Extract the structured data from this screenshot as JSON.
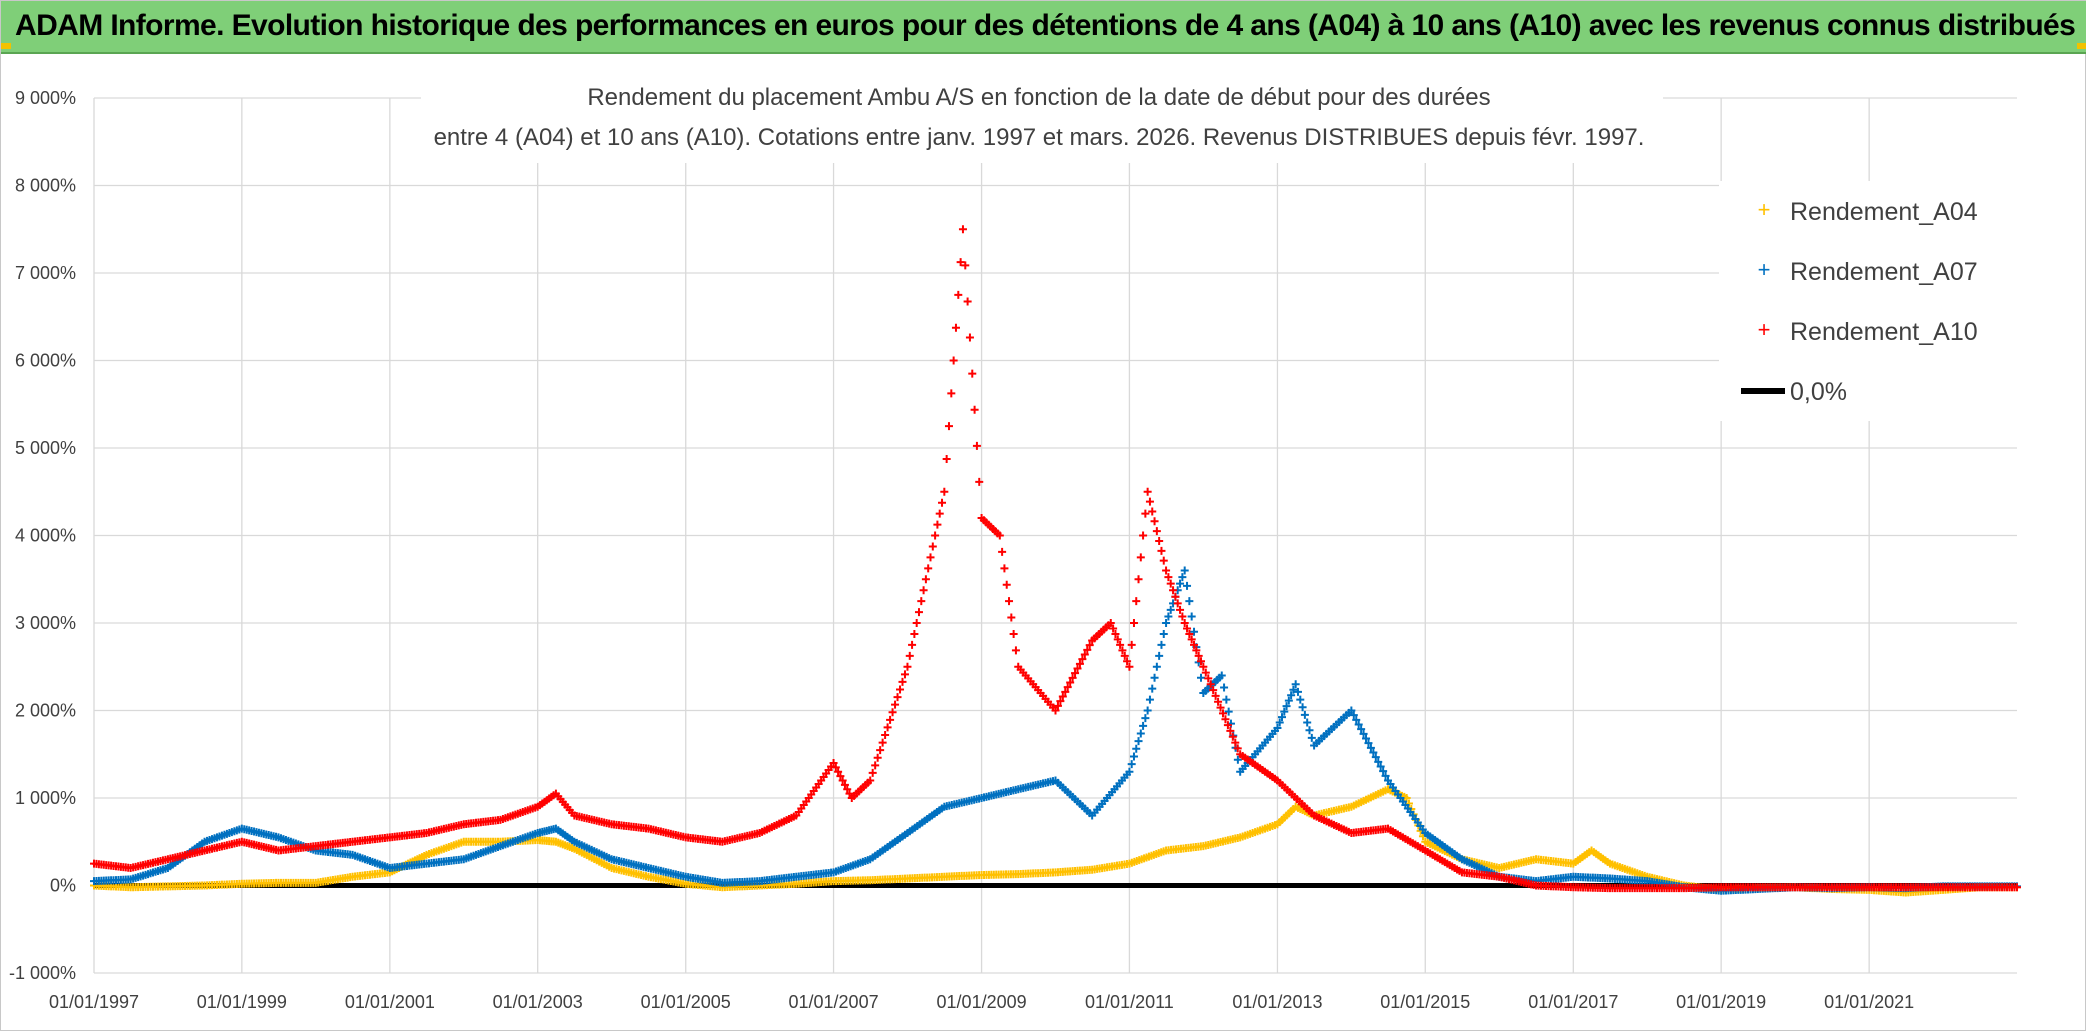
{
  "banner": {
    "title": "ADAM Informe. Evolution historique des performances en euros pour des détentions de 4 ans (A04) à 10 ans (A10) avec les revenus connus distribués"
  },
  "chart_data": {
    "type": "scatter",
    "title_line1": "Rendement du placement Ambu A/S en fonction de la date de début pour des durées",
    "title_line2": "entre 4 (A04) et 10 ans (A10). Cotations entre janv. 1997 et mars. 2026. Revenus DISTRIBUES depuis févr. 1997.",
    "y_ticks": [
      "-1 000%",
      "0%",
      "1 000%",
      "2 000%",
      "3 000%",
      "4 000%",
      "5 000%",
      "6 000%",
      "7 000%",
      "8 000%",
      "9 000%"
    ],
    "x_ticks": [
      "01/01/1997",
      "01/01/1999",
      "01/01/2001",
      "01/01/2003",
      "01/01/2005",
      "01/01/2007",
      "01/01/2009",
      "01/01/2011",
      "01/01/2013",
      "01/01/2015",
      "01/01/2017",
      "01/01/2019",
      "01/01/2021"
    ],
    "x_range": [
      "1997-01-01",
      "2023-01-01"
    ],
    "ylim": [
      -1000,
      9000
    ],
    "grid": true,
    "legend_position": "top-right",
    "series": [
      {
        "name": "Rendement_A04",
        "color": "#ffc000",
        "marker": "plus",
        "points": [
          [
            "1997-01-01",
            0
          ],
          [
            "1997-07-01",
            -20
          ],
          [
            "1998-01-01",
            -10
          ],
          [
            "1998-07-01",
            0
          ],
          [
            "1999-01-01",
            20
          ],
          [
            "1999-07-01",
            30
          ],
          [
            "2000-01-01",
            30
          ],
          [
            "2000-07-01",
            100
          ],
          [
            "2001-01-01",
            150
          ],
          [
            "2001-04-01",
            250
          ],
          [
            "2001-07-01",
            350
          ],
          [
            "2002-01-01",
            500
          ],
          [
            "2002-07-01",
            500
          ],
          [
            "2003-01-01",
            520
          ],
          [
            "2003-04-01",
            500
          ],
          [
            "2003-07-01",
            420
          ],
          [
            "2004-01-01",
            200
          ],
          [
            "2004-07-01",
            100
          ],
          [
            "2005-01-01",
            20
          ],
          [
            "2005-07-01",
            -20
          ],
          [
            "2006-01-01",
            0
          ],
          [
            "2006-07-01",
            20
          ],
          [
            "2007-01-01",
            50
          ],
          [
            "2007-07-01",
            60
          ],
          [
            "2008-01-01",
            80
          ],
          [
            "2008-07-01",
            100
          ],
          [
            "2009-01-01",
            120
          ],
          [
            "2009-07-01",
            130
          ],
          [
            "2010-01-01",
            150
          ],
          [
            "2010-07-01",
            180
          ],
          [
            "2011-01-01",
            250
          ],
          [
            "2011-07-01",
            400
          ],
          [
            "2012-01-01",
            450
          ],
          [
            "2012-07-01",
            550
          ],
          [
            "2013-01-01",
            700
          ],
          [
            "2013-04-01",
            900
          ],
          [
            "2013-07-01",
            800
          ],
          [
            "2014-01-01",
            900
          ],
          [
            "2014-07-01",
            1100
          ],
          [
            "2014-10-01",
            1000
          ],
          [
            "2015-01-01",
            500
          ],
          [
            "2015-07-01",
            300
          ],
          [
            "2016-01-01",
            200
          ],
          [
            "2016-07-01",
            300
          ],
          [
            "2017-01-01",
            250
          ],
          [
            "2017-04-01",
            400
          ],
          [
            "2017-07-01",
            250
          ],
          [
            "2018-01-01",
            100
          ],
          [
            "2018-07-01",
            0
          ],
          [
            "2019-01-01",
            -50
          ],
          [
            "2019-07-01",
            -30
          ],
          [
            "2020-01-01",
            -20
          ],
          [
            "2020-07-01",
            -40
          ],
          [
            "2021-01-01",
            -50
          ],
          [
            "2021-07-01",
            -80
          ],
          [
            "2022-01-01",
            -50
          ],
          [
            "2022-07-01",
            -20
          ],
          [
            "2023-01-01",
            -20
          ]
        ]
      },
      {
        "name": "Rendement_A07",
        "color": "#0070c0",
        "marker": "plus",
        "points": [
          [
            "1997-01-01",
            50
          ],
          [
            "1997-07-01",
            70
          ],
          [
            "1998-01-01",
            200
          ],
          [
            "1998-07-01",
            500
          ],
          [
            "1999-01-01",
            650
          ],
          [
            "1999-07-01",
            550
          ],
          [
            "2000-01-01",
            400
          ],
          [
            "2000-07-01",
            350
          ],
          [
            "2001-01-01",
            200
          ],
          [
            "2001-07-01",
            250
          ],
          [
            "2002-01-01",
            300
          ],
          [
            "2002-07-01",
            450
          ],
          [
            "2003-01-01",
            600
          ],
          [
            "2003-04-01",
            650
          ],
          [
            "2003-07-01",
            500
          ],
          [
            "2004-01-01",
            300
          ],
          [
            "2004-07-01",
            200
          ],
          [
            "2005-01-01",
            100
          ],
          [
            "2005-07-01",
            30
          ],
          [
            "2006-01-01",
            50
          ],
          [
            "2006-07-01",
            100
          ],
          [
            "2007-01-01",
            150
          ],
          [
            "2007-07-01",
            300
          ],
          [
            "2008-01-01",
            600
          ],
          [
            "2008-07-01",
            900
          ],
          [
            "2009-01-01",
            1000
          ],
          [
            "2009-07-01",
            1100
          ],
          [
            "2010-01-01",
            1200
          ],
          [
            "2010-07-01",
            800
          ],
          [
            "2011-01-01",
            1300
          ],
          [
            "2011-04-01",
            2000
          ],
          [
            "2011-07-01",
            3000
          ],
          [
            "2011-10-01",
            3600
          ],
          [
            "2012-01-01",
            2200
          ],
          [
            "2012-04-01",
            2400
          ],
          [
            "2012-07-01",
            1300
          ],
          [
            "2013-01-01",
            1800
          ],
          [
            "2013-04-01",
            2300
          ],
          [
            "2013-07-01",
            1600
          ],
          [
            "2014-01-01",
            2000
          ],
          [
            "2014-07-01",
            1200
          ],
          [
            "2015-01-01",
            600
          ],
          [
            "2015-07-01",
            300
          ],
          [
            "2016-01-01",
            100
          ],
          [
            "2016-07-01",
            50
          ],
          [
            "2017-01-01",
            100
          ],
          [
            "2017-07-01",
            80
          ],
          [
            "2018-01-01",
            50
          ],
          [
            "2018-07-01",
            -20
          ],
          [
            "2019-01-01",
            -60
          ],
          [
            "2019-07-01",
            -40
          ],
          [
            "2020-01-01",
            -20
          ],
          [
            "2020-07-01",
            -30
          ],
          [
            "2021-01-01",
            -20
          ],
          [
            "2021-07-01",
            -30
          ],
          [
            "2022-01-01",
            -10
          ],
          [
            "2022-07-01",
            -10
          ],
          [
            "2023-01-01",
            -10
          ]
        ]
      },
      {
        "name": "Rendement_A10",
        "color": "#ff0000",
        "marker": "plus",
        "points": [
          [
            "1997-01-01",
            250
          ],
          [
            "1997-07-01",
            200
          ],
          [
            "1998-01-01",
            300
          ],
          [
            "1998-07-01",
            400
          ],
          [
            "1999-01-01",
            500
          ],
          [
            "1999-07-01",
            400
          ],
          [
            "2000-01-01",
            450
          ],
          [
            "2000-07-01",
            500
          ],
          [
            "2001-01-01",
            550
          ],
          [
            "2001-07-01",
            600
          ],
          [
            "2002-01-01",
            700
          ],
          [
            "2002-07-01",
            750
          ],
          [
            "2003-01-01",
            900
          ],
          [
            "2003-04-01",
            1050
          ],
          [
            "2003-07-01",
            800
          ],
          [
            "2004-01-01",
            700
          ],
          [
            "2004-07-01",
            650
          ],
          [
            "2005-01-01",
            550
          ],
          [
            "2005-07-01",
            500
          ],
          [
            "2006-01-01",
            600
          ],
          [
            "2006-07-01",
            800
          ],
          [
            "2007-01-01",
            1400
          ],
          [
            "2007-04-01",
            1000
          ],
          [
            "2007-07-01",
            1200
          ],
          [
            "2008-01-01",
            2500
          ],
          [
            "2008-04-01",
            3500
          ],
          [
            "2008-07-01",
            4500
          ],
          [
            "2008-10-01",
            7500
          ],
          [
            "2009-01-01",
            4200
          ],
          [
            "2009-04-01",
            4000
          ],
          [
            "2009-07-01",
            2500
          ],
          [
            "2010-01-01",
            2000
          ],
          [
            "2010-07-01",
            2800
          ],
          [
            "2010-10-01",
            3000
          ],
          [
            "2011-01-01",
            2500
          ],
          [
            "2011-04-01",
            4500
          ],
          [
            "2011-07-01",
            3600
          ],
          [
            "2011-10-01",
            3000
          ],
          [
            "2012-01-01",
            2500
          ],
          [
            "2012-07-01",
            1500
          ],
          [
            "2013-01-01",
            1200
          ],
          [
            "2013-07-01",
            800
          ],
          [
            "2014-01-01",
            600
          ],
          [
            "2014-07-01",
            650
          ],
          [
            "2015-01-01",
            400
          ],
          [
            "2015-07-01",
            150
          ],
          [
            "2016-01-01",
            100
          ],
          [
            "2016-07-01",
            0
          ],
          [
            "2017-01-01",
            -20
          ],
          [
            "2017-07-01",
            -30
          ],
          [
            "2018-01-01",
            -30
          ],
          [
            "2018-07-01",
            -30
          ],
          [
            "2019-01-01",
            -20
          ],
          [
            "2019-07-01",
            -20
          ],
          [
            "2020-01-01",
            -20
          ],
          [
            "2020-07-01",
            -20
          ],
          [
            "2021-01-01",
            -20
          ],
          [
            "2021-07-01",
            -20
          ],
          [
            "2022-01-01",
            -20
          ],
          [
            "2022-07-01",
            -20
          ],
          [
            "2023-01-01",
            -20
          ]
        ]
      }
    ],
    "zero_line": {
      "name": "0,0%",
      "color": "#000000"
    }
  }
}
